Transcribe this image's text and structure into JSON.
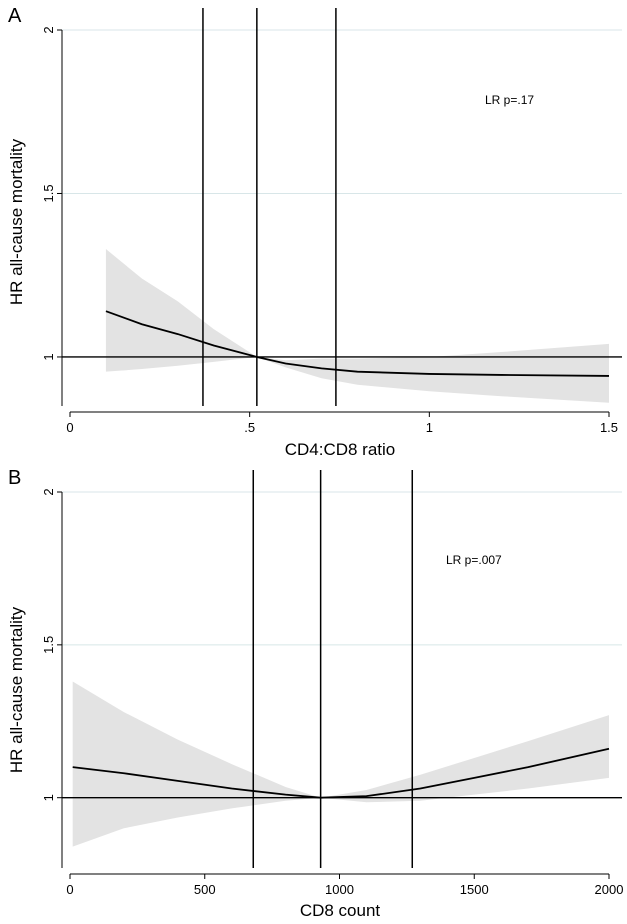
{
  "chart_data": [
    {
      "type": "line",
      "panel_label": "A",
      "xlabel": "CD4:CD8 ratio",
      "ylabel": "HR all-cause mortality",
      "xlim": [
        0,
        1.5
      ],
      "ylim": [
        0.85,
        2.0
      ],
      "x_ticks": [
        0,
        0.5,
        1,
        1.5
      ],
      "x_tick_labels": [
        "0",
        ".5",
        "1",
        "1.5"
      ],
      "y_ticks": [
        1,
        1.5,
        2
      ],
      "y_tick_labels": [
        "1",
        "1.5",
        "2"
      ],
      "grid": true,
      "reference_line_y": 1,
      "vertical_lines_x": [
        0.37,
        0.52,
        0.74
      ],
      "annotation": "LR p=.17",
      "series": [
        {
          "x": [
            0.1,
            0.2,
            0.3,
            0.4,
            0.52,
            0.6,
            0.7,
            0.8,
            1.0,
            1.2,
            1.5
          ],
          "values": [
            1.14,
            1.1,
            1.07,
            1.035,
            1.0,
            0.98,
            0.965,
            0.955,
            0.948,
            0.945,
            0.942
          ],
          "lower": [
            0.955,
            0.963,
            0.973,
            0.985,
            1.0,
            0.968,
            0.935,
            0.915,
            0.895,
            0.88,
            0.86
          ],
          "upper": [
            1.33,
            1.24,
            1.17,
            1.085,
            1.0,
            0.99,
            0.995,
            0.995,
            1.0,
            1.015,
            1.04
          ]
        }
      ]
    },
    {
      "type": "line",
      "panel_label": "B",
      "xlabel": "CD8 count",
      "ylabel": "HR all-cause mortality",
      "xlim": [
        0,
        2000
      ],
      "ylim": [
        0.77,
        2.0
      ],
      "x_ticks": [
        0,
        500,
        1000,
        1500,
        2000
      ],
      "x_tick_labels": [
        "0",
        "500",
        "1000",
        "1500",
        "2000"
      ],
      "y_ticks": [
        1,
        1.5,
        2
      ],
      "y_tick_labels": [
        "1",
        "1.5",
        "2"
      ],
      "grid": true,
      "reference_line_y": 1,
      "vertical_lines_x": [
        680,
        930,
        1270
      ],
      "annotation": "LR p=.007",
      "series": [
        {
          "x": [
            10,
            200,
            400,
            600,
            800,
            930,
            1100,
            1300,
            1500,
            1700,
            2000
          ],
          "values": [
            1.1,
            1.08,
            1.055,
            1.03,
            1.01,
            1.0,
            1.005,
            1.03,
            1.065,
            1.1,
            1.16
          ],
          "lower": [
            0.84,
            0.9,
            0.935,
            0.965,
            0.99,
            1.0,
            0.985,
            0.99,
            1.01,
            1.03,
            1.065
          ],
          "upper": [
            1.38,
            1.28,
            1.19,
            1.11,
            1.035,
            1.0,
            1.025,
            1.075,
            1.13,
            1.185,
            1.27
          ]
        }
      ]
    }
  ]
}
